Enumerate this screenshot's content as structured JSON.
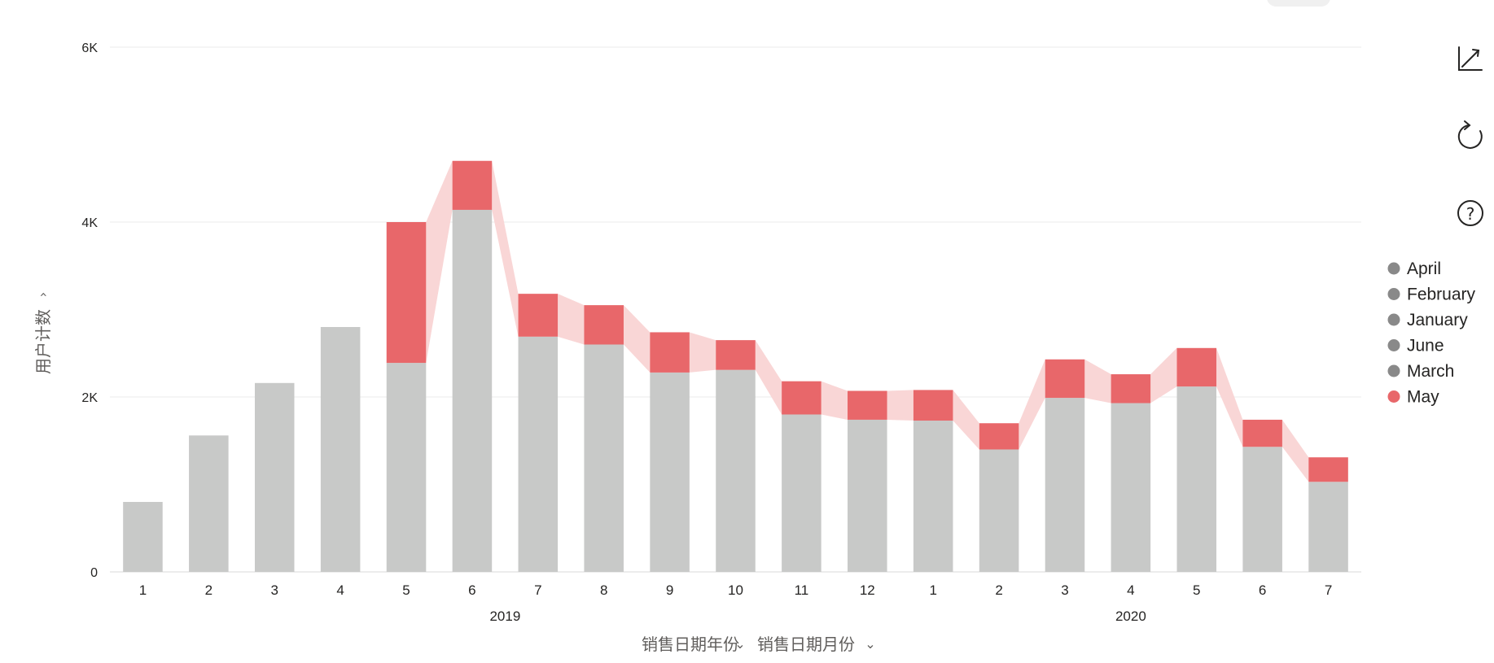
{
  "chart_data": {
    "type": "bar",
    "stacked": true,
    "categories": [
      "1",
      "2",
      "3",
      "4",
      "5",
      "6",
      "7",
      "8",
      "9",
      "10",
      "11",
      "12",
      "1",
      "2",
      "3",
      "4",
      "5",
      "6",
      "7"
    ],
    "years": [
      {
        "label": "2019",
        "from": 0,
        "to": 11
      },
      {
        "label": "2020",
        "from": 12,
        "to": 18
      }
    ],
    "totals": [
      800,
      1560,
      2160,
      2800,
      4000,
      4700,
      3180,
      3050,
      2740,
      2650,
      2180,
      2070,
      2080,
      1700,
      2430,
      2260,
      2560,
      1740,
      1310
    ],
    "series": [
      {
        "name": "May",
        "color": "#E8676A",
        "values": [
          0,
          0,
          0,
          0,
          1610,
          560,
          490,
          450,
          460,
          340,
          380,
          330,
          350,
          300,
          440,
          330,
          440,
          310,
          280
        ]
      }
    ],
    "stacked_remainder_color": "#C8C9C8",
    "ribbon_color": "#F9D6D6",
    "ylabel": "用户计数",
    "xlabels": [
      "销售日期年份",
      "销售日期月份"
    ],
    "yticks": [
      {
        "value": 0,
        "label": "0"
      },
      {
        "value": 2000,
        "label": "2K"
      },
      {
        "value": 4000,
        "label": "4K"
      },
      {
        "value": 6000,
        "label": "6K"
      }
    ],
    "ylim": [
      0,
      6000
    ],
    "grid": true,
    "legend_position": "right",
    "legend": [
      {
        "label": "April",
        "color": "#898989"
      },
      {
        "label": "February",
        "color": "#898989"
      },
      {
        "label": "January",
        "color": "#898989"
      },
      {
        "label": "June",
        "color": "#898989"
      },
      {
        "label": "March",
        "color": "#898989"
      },
      {
        "label": "May",
        "color": "#E8676A"
      }
    ]
  },
  "toolbar": {
    "icons": [
      "axis-icon",
      "refresh-icon",
      "help-icon"
    ]
  }
}
